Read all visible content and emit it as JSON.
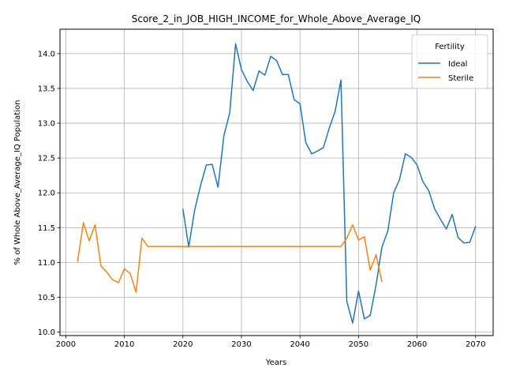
{
  "chart_data": {
    "type": "line",
    "title": "Score_2_in_JOB_HIGH_INCOME_for_Whole_Above_Average_IQ",
    "xlabel": "Years",
    "ylabel": "% of Whole Above_Average_IQ Population",
    "xlim": [
      1999,
      2073
    ],
    "ylim": [
      9.95,
      14.35
    ],
    "xticks": [
      2000,
      2010,
      2020,
      2030,
      2040,
      2050,
      2060,
      2070
    ],
    "yticks": [
      10.0,
      10.5,
      11.0,
      11.5,
      12.0,
      12.5,
      13.0,
      13.5,
      14.0
    ],
    "ytick_labels": [
      "10.0",
      "10.5",
      "11.0",
      "11.5",
      "12.0",
      "12.5",
      "13.0",
      "13.5",
      "14.0"
    ],
    "grid": true,
    "legend": {
      "title": "Fertility",
      "placement": "top-right"
    },
    "series": [
      {
        "name": "Ideal",
        "color": "#1f77b4",
        "x": [
          2020,
          2021,
          2022,
          2023,
          2024,
          2025,
          2026,
          2027,
          2028,
          2029,
          2030,
          2031,
          2032,
          2033,
          2034,
          2035,
          2036,
          2037,
          2038,
          2039,
          2040,
          2041,
          2042,
          2043,
          2044,
          2045,
          2046,
          2047,
          2048,
          2049,
          2050,
          2051,
          2052,
          2053,
          2054,
          2055,
          2056,
          2057,
          2058,
          2059,
          2060,
          2061,
          2062,
          2063,
          2064,
          2065,
          2066,
          2067,
          2068,
          2069,
          2070
        ],
        "values": [
          11.77,
          11.22,
          11.75,
          12.1,
          12.4,
          12.41,
          12.08,
          12.82,
          13.15,
          14.14,
          13.77,
          13.6,
          13.47,
          13.75,
          13.69,
          13.96,
          13.9,
          13.7,
          13.7,
          13.34,
          13.28,
          12.72,
          12.56,
          12.6,
          12.65,
          12.93,
          13.17,
          13.62,
          10.44,
          10.13,
          10.59,
          10.19,
          10.24,
          10.68,
          11.22,
          11.45,
          12.0,
          12.19,
          12.56,
          12.51,
          12.4,
          12.16,
          12.03,
          11.77,
          11.62,
          11.48,
          11.69,
          11.36,
          11.28,
          11.29,
          11.52
        ]
      },
      {
        "name": "Sterile",
        "color": "#ff7f0e",
        "x": [
          2002,
          2003,
          2004,
          2005,
          2006,
          2007,
          2008,
          2009,
          2010,
          2011,
          2012,
          2013,
          2014,
          2015,
          2016,
          2017,
          2018,
          2019,
          2020,
          2021,
          2022,
          2023,
          2024,
          2025,
          2026,
          2027,
          2028,
          2029,
          2030,
          2031,
          2032,
          2033,
          2034,
          2035,
          2036,
          2037,
          2038,
          2039,
          2040,
          2041,
          2042,
          2043,
          2044,
          2045,
          2046,
          2047,
          2048,
          2049,
          2050,
          2051,
          2052,
          2053,
          2054
        ],
        "values": [
          11.01,
          11.57,
          11.31,
          11.54,
          10.95,
          10.86,
          10.75,
          10.71,
          10.91,
          10.84,
          10.57,
          11.35,
          11.23,
          11.23,
          11.23,
          11.23,
          11.23,
          11.23,
          11.23,
          11.23,
          11.23,
          11.23,
          11.23,
          11.23,
          11.23,
          11.23,
          11.23,
          11.23,
          11.23,
          11.23,
          11.23,
          11.23,
          11.23,
          11.23,
          11.23,
          11.23,
          11.23,
          11.23,
          11.23,
          11.23,
          11.23,
          11.23,
          11.23,
          11.23,
          11.23,
          11.23,
          11.35,
          11.54,
          11.32,
          11.37,
          10.89,
          11.11,
          10.72
        ]
      }
    ]
  }
}
